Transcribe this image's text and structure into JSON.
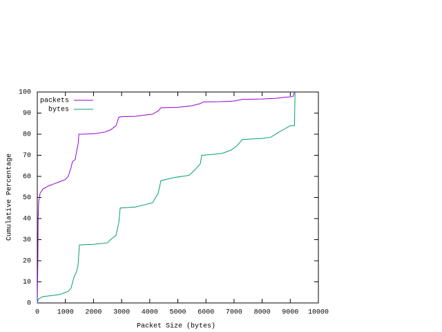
{
  "chart_data": {
    "type": "line",
    "xlabel": "Packet Size (bytes)",
    "ylabel": "Cumulative Percentage",
    "xlim": [
      0,
      10000
    ],
    "xticks": [
      0,
      1000,
      2000,
      3000,
      4000,
      5000,
      6000,
      7000,
      8000,
      9000,
      10000
    ],
    "ylim": [
      0,
      100
    ],
    "yticks": [
      0,
      10,
      20,
      30,
      40,
      50,
      60,
      70,
      80,
      90,
      100
    ],
    "legend": "top-left",
    "series": [
      {
        "name": "packets",
        "color": "#9400d3",
        "x": [
          0,
          10,
          20,
          30,
          50,
          100,
          200,
          400,
          600,
          800,
          1000,
          1100,
          1200,
          1250,
          1350,
          1400,
          1450,
          1480,
          1600,
          2000,
          2400,
          2600,
          2800,
          2900,
          3000,
          3500,
          3800,
          4100,
          4300,
          4400,
          5000,
          5500,
          5800,
          5900,
          6500,
          7000,
          7300,
          8000,
          8500,
          8800,
          9100,
          9150
        ],
        "values": [
          0,
          10,
          20,
          40,
          48,
          52,
          54,
          55.5,
          56.5,
          57.5,
          58.5,
          60,
          64,
          67,
          68,
          72,
          75,
          80,
          80,
          80.2,
          81,
          82,
          84,
          88,
          88.3,
          88.5,
          89,
          89.5,
          91,
          92.5,
          92.7,
          93.5,
          94.5,
          95.3,
          95.4,
          95.7,
          96.5,
          96.7,
          97,
          97.5,
          97.8,
          100
        ]
      },
      {
        "name": "bytes",
        "color": "#009e73",
        "x": [
          0,
          20,
          50,
          200,
          500,
          800,
          1000,
          1100,
          1200,
          1300,
          1400,
          1450,
          1500,
          2000,
          2500,
          2600,
          2800,
          2900,
          2950,
          3500,
          3800,
          4100,
          4300,
          4400,
          4900,
          5400,
          5600,
          5800,
          5850,
          6300,
          6600,
          6900,
          7100,
          7300,
          8000,
          8300,
          8600,
          8800,
          9000,
          9150,
          9170
        ],
        "values": [
          0,
          1,
          2,
          3,
          3.5,
          4,
          5,
          5.5,
          7,
          12,
          15,
          18,
          27.5,
          27.8,
          28.5,
          30,
          32,
          38,
          45,
          45.5,
          46.5,
          47.5,
          52,
          58,
          59.5,
          60.5,
          63,
          66,
          70,
          70.5,
          71,
          72.5,
          74.5,
          77.5,
          78,
          78.5,
          81,
          82.5,
          84,
          84,
          100
        ]
      }
    ]
  }
}
